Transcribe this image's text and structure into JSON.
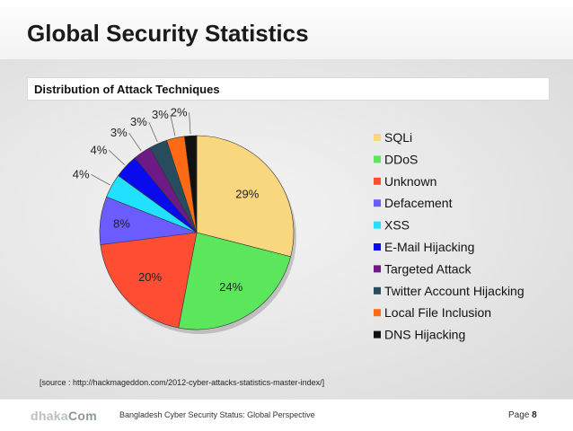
{
  "title": "Global Security Statistics",
  "subtitle": "Distribution of Attack Techniques",
  "source": "[source : http://hackmageddon.com/2012-cyber-attacks-statistics-master-index/]",
  "footer": {
    "logo_part1": "dhaka",
    "logo_part2": "Com",
    "text": "Bangladesh Cyber Security Status: Global Perspective",
    "page_label": "Page",
    "page_number": "8"
  },
  "chart_data": {
    "type": "pie",
    "title": "Distribution of Attack Techniques",
    "legend_position": "right",
    "start_angle_deg": 0,
    "direction": "clockwise",
    "slices": [
      {
        "label": "SQLi",
        "value": 29,
        "display": "29%",
        "color": "#f9d77e"
      },
      {
        "label": "DDoS",
        "value": 24,
        "display": "24%",
        "color": "#5ce65c"
      },
      {
        "label": "Unknown",
        "value": 20,
        "display": "20%",
        "color": "#ff4d33"
      },
      {
        "label": "Defacement",
        "value": 8,
        "display": "8%",
        "color": "#6a5cff"
      },
      {
        "label": "XSS",
        "value": 4,
        "display": "4%",
        "color": "#22e0ff"
      },
      {
        "label": "E-Mail Hijacking",
        "value": 4,
        "display": "4%",
        "color": "#0a0aee"
      },
      {
        "label": "Targeted Attack",
        "value": 3,
        "display": "3%",
        "color": "#6d1a86"
      },
      {
        "label": "Twitter Account Hijacking",
        "value": 3,
        "display": "3%",
        "color": "#264c5e"
      },
      {
        "label": "Local File Inclusion",
        "value": 3,
        "display": "3%",
        "color": "#ff6a14"
      },
      {
        "label": "DNS Hijacking",
        "value": 2,
        "display": "2%",
        "color": "#111111"
      }
    ]
  }
}
